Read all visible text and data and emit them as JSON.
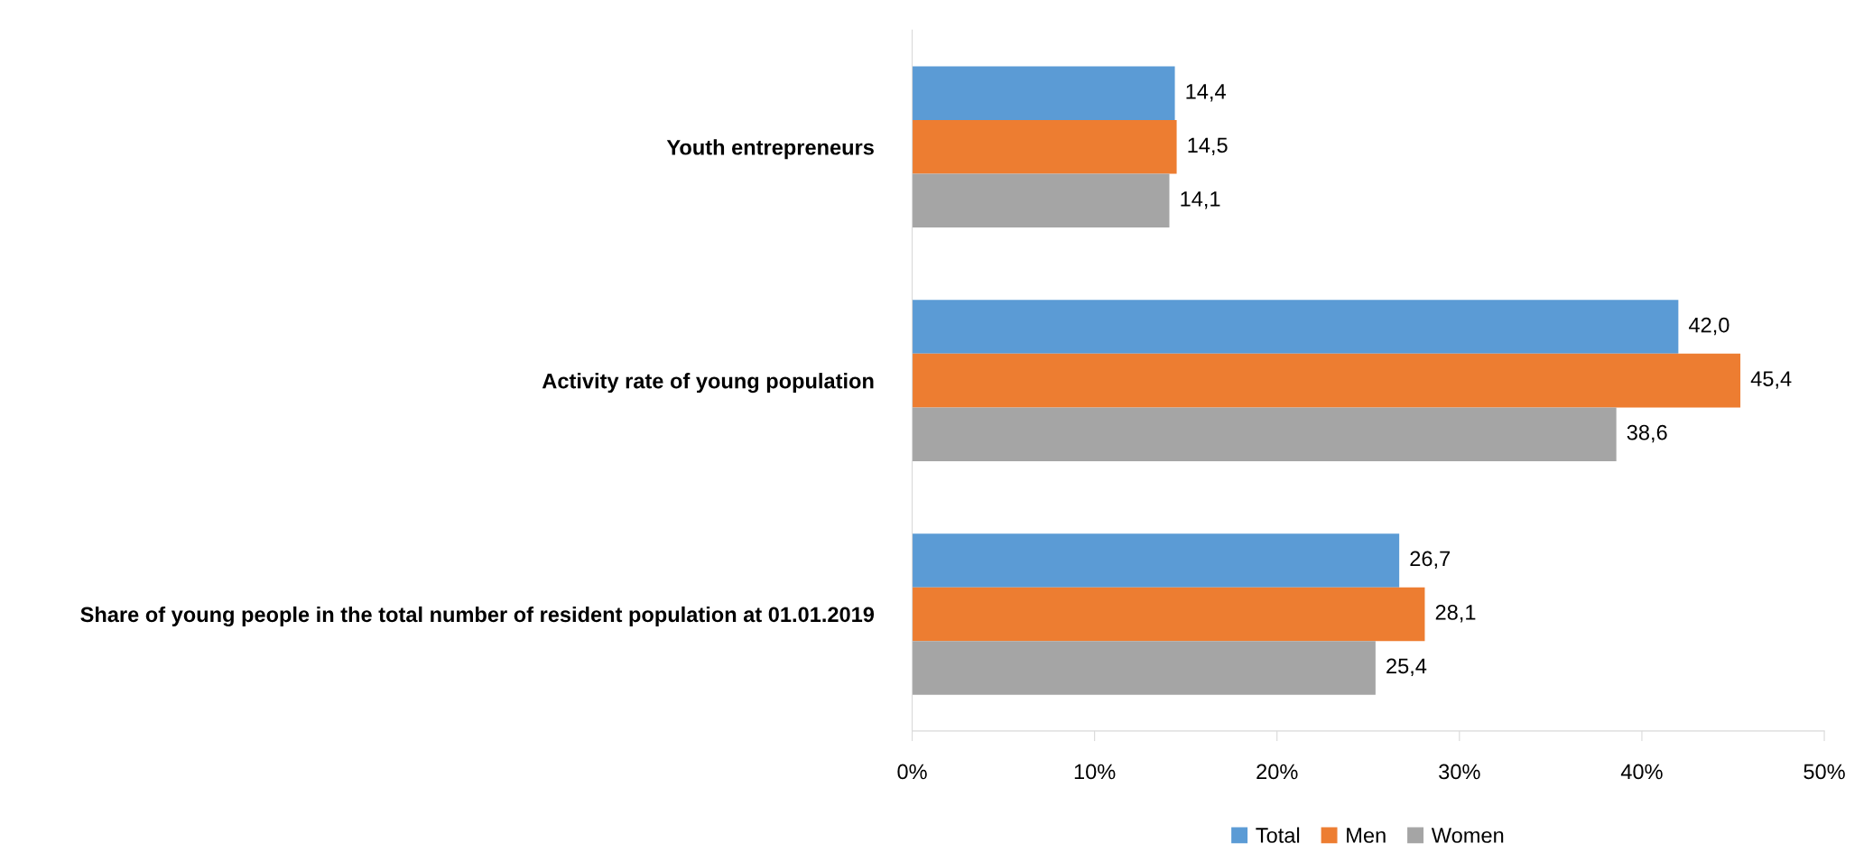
{
  "chart_data": {
    "type": "bar",
    "orientation": "horizontal",
    "categories": [
      "Youth entrepreneurs",
      "Activity rate of young population",
      "Share of young people in the total number of resident population at 01.01.2019"
    ],
    "series": [
      {
        "name": "Total",
        "color": "#5b9bd5",
        "values": [
          14.4,
          42.0,
          26.7
        ],
        "value_labels": [
          "14,4",
          "42,0",
          "26,7"
        ]
      },
      {
        "name": "Men",
        "color": "#ed7d31",
        "values": [
          14.5,
          45.4,
          28.1
        ],
        "value_labels": [
          "14,5",
          "45,4",
          "28,1"
        ]
      },
      {
        "name": "Women",
        "color": "#a5a5a5",
        "values": [
          14.1,
          38.6,
          25.4
        ],
        "value_labels": [
          "14,1",
          "38,6",
          "25,4"
        ]
      }
    ],
    "xlim": [
      0,
      50
    ],
    "xticks": [
      {
        "value": 0,
        "label": "0%"
      },
      {
        "value": 10,
        "label": "10%"
      },
      {
        "value": 20,
        "label": "20%"
      },
      {
        "value": 30,
        "label": "30%"
      },
      {
        "value": 40,
        "label": "40%"
      },
      {
        "value": 50,
        "label": "50%"
      }
    ],
    "grid": false,
    "legend": "bottom"
  }
}
